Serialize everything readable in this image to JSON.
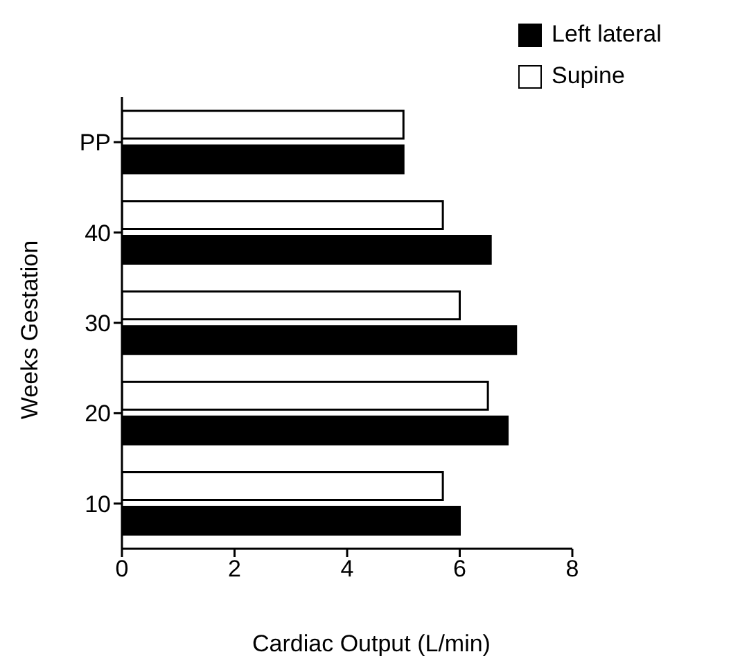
{
  "chart_data": {
    "type": "bar",
    "orientation": "horizontal",
    "xlabel": "Cardiac Output (L/min)",
    "ylabel": "Weeks Gestation",
    "categories": [
      "PP",
      "40",
      "30",
      "20",
      "10"
    ],
    "series": [
      {
        "name": "Supine",
        "color": "#ffffff",
        "values": [
          5.0,
          5.7,
          6.0,
          6.5,
          5.7
        ]
      },
      {
        "name": "Left lateral",
        "color": "#000000",
        "values": [
          5.0,
          6.55,
          7.0,
          6.85,
          6.0
        ]
      }
    ],
    "xlim": [
      0,
      8
    ],
    "xticks": [
      0,
      2,
      4,
      6,
      8
    ],
    "legend": "top right",
    "grid": false
  }
}
